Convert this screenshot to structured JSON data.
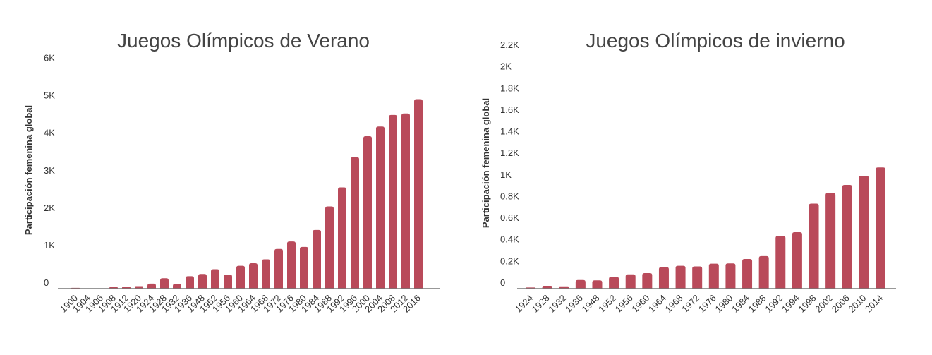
{
  "colors": {
    "bar": "#b94a5a",
    "text": "#333333",
    "title": "#444444",
    "axis": "#777777"
  },
  "chart_data": [
    {
      "type": "bar",
      "title": "Juegos Olímpicos de Verano",
      "ylabel": "Participación femenina global",
      "xlabel": "",
      "ylim": [
        0,
        6500
      ],
      "yticks": [
        0,
        1000,
        2000,
        3000,
        4000,
        5000,
        6000
      ],
      "ytick_labels": [
        "0",
        "1K",
        "2K",
        "3K",
        "4K",
        "5K",
        "6K"
      ],
      "grid": false,
      "categories": [
        "1900",
        "1904",
        "1906",
        "1908",
        "1912",
        "1920",
        "1924",
        "1928",
        "1932",
        "1936",
        "1948",
        "1952",
        "1956",
        "1960",
        "1964",
        "1968",
        "1972",
        "1976",
        "1980",
        "1984",
        "1988",
        "1992",
        "1996",
        "2000",
        "2004",
        "2008",
        "2012",
        "2016"
      ],
      "values": [
        22,
        6,
        6,
        37,
        48,
        65,
        135,
        277,
        126,
        331,
        390,
        519,
        376,
        611,
        678,
        781,
        1059,
        1260,
        1115,
        1566,
        2194,
        2704,
        3512,
        4069,
        4329,
        4637,
        4676,
        5059
      ]
    },
    {
      "type": "bar",
      "title": "Juegos Olímpicos de invierno",
      "ylabel": "Participación femenina global",
      "xlabel": "",
      "ylim": [
        0,
        2200
      ],
      "yticks": [
        0,
        200,
        400,
        600,
        800,
        1000,
        1200,
        1400,
        1600,
        1800,
        2000,
        2200
      ],
      "ytick_labels": [
        "0",
        "0.2K",
        "0.4K",
        "0.6K",
        "0.8K",
        "1K",
        "1.2K",
        "1.4K",
        "1.6K",
        "1.8K",
        "2K",
        "2.2K"
      ],
      "grid": false,
      "categories": [
        "1924",
        "1928",
        "1932",
        "1936",
        "1948",
        "1952",
        "1956",
        "1960",
        "1964",
        "1968",
        "1972",
        "1976",
        "1980",
        "1984",
        "1988",
        "1992",
        "1994",
        "1998",
        "2002",
        "2006",
        "2010",
        "2014"
      ],
      "values": [
        11,
        26,
        21,
        80,
        77,
        109,
        132,
        144,
        199,
        211,
        206,
        231,
        233,
        274,
        301,
        488,
        522,
        787,
        886,
        960,
        1044,
        1121
      ]
    }
  ]
}
